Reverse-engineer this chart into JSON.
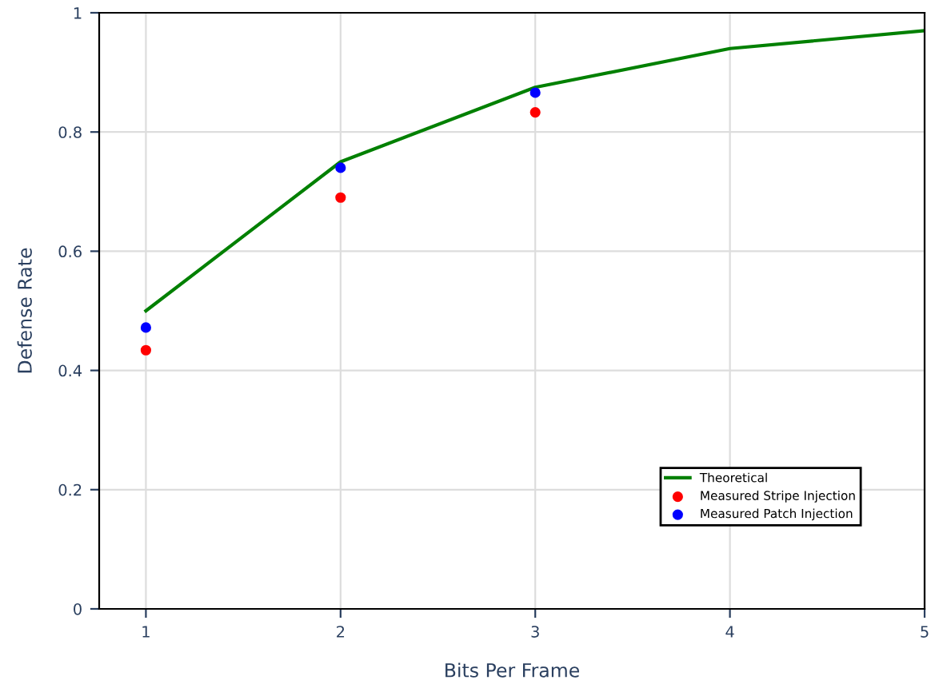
{
  "chart_data": {
    "type": "line",
    "xlabel": "Bits Per Frame",
    "ylabel": "Defense Rate",
    "series": [
      {
        "name": "Theoretical",
        "color": "#008000",
        "x": [
          1,
          2,
          3,
          4,
          5
        ],
        "values": [
          0.5,
          0.75,
          0.875,
          0.94,
          0.97
        ],
        "marker": "none"
      },
      {
        "name": "Measured Stripe Injection",
        "type": "scatter",
        "color": "#ff0000",
        "x": [
          1,
          2,
          3
        ],
        "values": [
          0.434,
          0.69,
          0.833
        ],
        "marker": "circle"
      },
      {
        "name": "Measured Patch Injection",
        "type": "scatter",
        "color": "#0000ff",
        "x": [
          1,
          2,
          3
        ],
        "values": [
          0.472,
          0.74,
          0.866
        ],
        "marker": "circle"
      }
    ],
    "xlim": [
      0.76,
      5
    ],
    "ylim": [
      0,
      1
    ],
    "xticks": [
      1,
      2,
      3,
      4,
      5
    ],
    "yticks": [
      0,
      0.2,
      0.4,
      0.6,
      0.8,
      1
    ],
    "grid": true,
    "legend": "bottom right"
  }
}
